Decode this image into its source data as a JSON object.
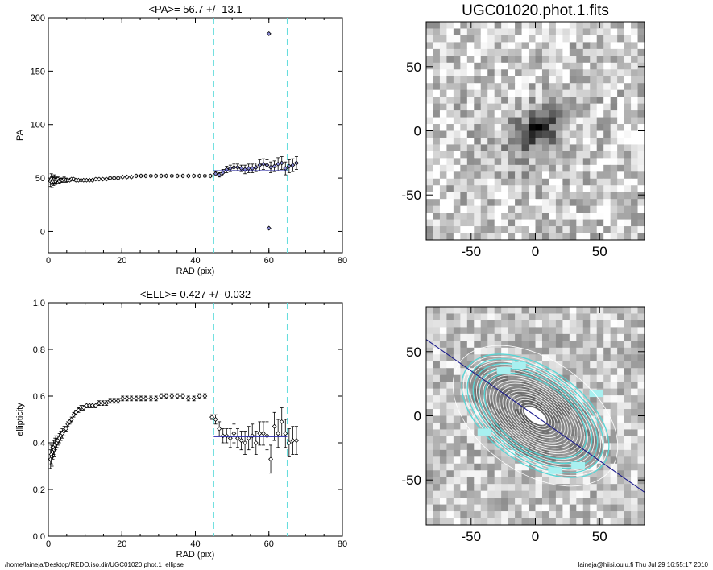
{
  "chart_data": [
    {
      "type": "scatter",
      "title": "<PA>=  56.7 +/-  13.1",
      "xlabel": "RAD (pix)",
      "ylabel": "PA",
      "xlim": [
        0,
        80
      ],
      "ylim": [
        -20,
        200
      ],
      "xticks": [
        0,
        20,
        40,
        60,
        80
      ],
      "yticks": [
        0,
        50,
        100,
        150,
        200
      ],
      "grid": false,
      "vlines": [
        45,
        65
      ],
      "vline_color": "#66dddd",
      "mean_line": {
        "x": [
          45,
          65
        ],
        "y": 56.7,
        "color": "#2b2bb0"
      },
      "series": [
        {
          "marker": "diamond",
          "facecolor": "#ffffff",
          "x": [
            0.6,
            0.8,
            1.0,
            1.2,
            1.4,
            1.6,
            1.8,
            2.0,
            2.3,
            2.6,
            3.0,
            3.4,
            3.8,
            4.3,
            4.8,
            5.3,
            5.8,
            6.3,
            6.9,
            7.5,
            8.2,
            8.9,
            9.6,
            10.4,
            11.2,
            12.0,
            12.9,
            13.8,
            14.8,
            15.8,
            16.8,
            17.9,
            19.0,
            20.2,
            21.4,
            22.6,
            23.9,
            25.2,
            26.5,
            27.9,
            29.3,
            30.7,
            32.1,
            33.6,
            35.1,
            36.6,
            38.1,
            39.6,
            41.1,
            42.6,
            44.1
          ],
          "y": [
            47,
            49,
            46,
            48,
            47,
            49,
            48,
            47,
            48,
            49,
            47,
            48,
            48,
            49,
            48,
            48,
            48,
            49,
            49,
            48,
            48,
            48,
            48,
            48,
            48,
            48,
            49,
            49,
            49,
            49,
            50,
            50,
            50,
            51,
            51,
            51,
            52,
            52,
            52,
            52,
            52,
            52,
            52,
            52,
            52,
            52,
            52,
            52,
            52,
            52,
            52
          ],
          "yerr": [
            5,
            5,
            5,
            4,
            4,
            4,
            3,
            3,
            3,
            2,
            2,
            2,
            2,
            2,
            2,
            1,
            1,
            1,
            1,
            1,
            1,
            1,
            1,
            1,
            1,
            1,
            1,
            1,
            1,
            1,
            1,
            1,
            1,
            1,
            1,
            1,
            1,
            1,
            1,
            1,
            1,
            1,
            1,
            1,
            1,
            1,
            1,
            1,
            1,
            1,
            1
          ]
        },
        {
          "marker": "diamond",
          "facecolor": "#8a8ad8",
          "x": [
            45.5,
            46.5,
            47.5,
            48.5,
            49.5,
            50.5,
            51.5,
            52.5,
            53.5,
            54.5,
            55.5,
            56.5,
            57.5,
            58.5,
            59.5,
            60.5,
            61.5,
            62.5,
            63.5,
            64.5,
            65.5,
            66.5,
            67.5
          ],
          "y": [
            54,
            53,
            55,
            58,
            59,
            60,
            60,
            59,
            58,
            59,
            59,
            60,
            62,
            63,
            62,
            60,
            61,
            63,
            64,
            59,
            61,
            62,
            64
          ],
          "yerr": [
            2,
            2,
            3,
            3,
            3,
            3,
            3,
            3,
            4,
            4,
            4,
            4,
            5,
            5,
            5,
            5,
            5,
            6,
            6,
            6,
            6,
            6,
            6
          ]
        },
        {
          "marker": "diamond",
          "facecolor": "#8a8ad8",
          "x": [
            60,
            60
          ],
          "y": [
            185,
            3
          ],
          "yerr": [
            0,
            0
          ]
        }
      ]
    },
    {
      "type": "scatter",
      "title": "<ELL>= 0.427 +/-  0.032",
      "xlabel": "RAD (pix)",
      "ylabel": "ellipticity",
      "xlim": [
        0,
        80
      ],
      "ylim": [
        0.0,
        1.0
      ],
      "xticks": [
        0,
        20,
        40,
        60,
        80
      ],
      "yticks": [
        0.0,
        0.2,
        0.4,
        0.6,
        0.8,
        1.0
      ],
      "grid": false,
      "vlines": [
        45,
        65
      ],
      "vline_color": "#66dddd",
      "mean_line": {
        "x": [
          45,
          65
        ],
        "y": 0.427,
        "color": "#2b2bb0"
      },
      "series": [
        {
          "marker": "diamond",
          "facecolor": "#ffffff",
          "x": [
            0.6,
            0.8,
            1.0,
            1.2,
            1.4,
            1.6,
            1.8,
            2.0,
            2.3,
            2.6,
            3.0,
            3.4,
            3.8,
            4.3,
            4.8,
            5.3,
            5.8,
            6.3,
            6.9,
            7.5,
            8.2,
            8.9,
            9.6,
            10.4,
            11.2,
            12.0,
            12.9,
            13.8,
            14.8,
            15.8,
            16.8,
            17.9,
            19.0,
            20.2,
            21.4,
            22.6,
            23.9,
            25.2,
            26.5,
            27.9,
            29.3,
            30.7,
            32.1,
            33.6,
            35.1,
            36.6,
            38.1,
            39.6,
            41.1,
            42.6
          ],
          "y": [
            0.33,
            0.35,
            0.34,
            0.36,
            0.38,
            0.37,
            0.39,
            0.4,
            0.4,
            0.41,
            0.42,
            0.43,
            0.44,
            0.45,
            0.46,
            0.48,
            0.49,
            0.5,
            0.52,
            0.53,
            0.54,
            0.55,
            0.55,
            0.56,
            0.56,
            0.56,
            0.56,
            0.57,
            0.57,
            0.57,
            0.58,
            0.58,
            0.58,
            0.59,
            0.59,
            0.59,
            0.59,
            0.59,
            0.59,
            0.59,
            0.59,
            0.6,
            0.6,
            0.6,
            0.6,
            0.6,
            0.59,
            0.59,
            0.6,
            0.6
          ],
          "yerr": [
            0.04,
            0.04,
            0.04,
            0.03,
            0.03,
            0.03,
            0.03,
            0.03,
            0.02,
            0.02,
            0.02,
            0.02,
            0.02,
            0.02,
            0.01,
            0.01,
            0.01,
            0.01,
            0.01,
            0.01,
            0.01,
            0.01,
            0.01,
            0.01,
            0.01,
            0.01,
            0.01,
            0.01,
            0.01,
            0.01,
            0.01,
            0.01,
            0.01,
            0.01,
            0.01,
            0.01,
            0.01,
            0.01,
            0.01,
            0.01,
            0.01,
            0.01,
            0.01,
            0.01,
            0.01,
            0.01,
            0.01,
            0.01,
            0.01,
            0.01
          ]
        },
        {
          "marker": "diamond",
          "facecolor": "#ffffff",
          "x": [
            44.5,
            45.5,
            46.5,
            47.5,
            48.5,
            49.5,
            50.5,
            51.5,
            52.5,
            53.5,
            54.5,
            55.5,
            56.5,
            57.5,
            58.5,
            59.5,
            60.5,
            61.5,
            62.5,
            63.5,
            64.5,
            65.5,
            66.5,
            67.5
          ],
          "y": [
            0.51,
            0.5,
            0.46,
            0.43,
            0.43,
            0.42,
            0.44,
            0.42,
            0.41,
            0.4,
            0.42,
            0.43,
            0.4,
            0.44,
            0.44,
            0.43,
            0.33,
            0.47,
            0.44,
            0.49,
            0.44,
            0.4,
            0.41,
            0.41
          ],
          "yerr": [
            0.01,
            0.02,
            0.03,
            0.03,
            0.03,
            0.04,
            0.04,
            0.04,
            0.04,
            0.05,
            0.05,
            0.05,
            0.05,
            0.05,
            0.05,
            0.06,
            0.06,
            0.06,
            0.06,
            0.06,
            0.06,
            0.06,
            0.06,
            0.06
          ]
        }
      ]
    }
  ],
  "images": [
    {
      "title": "UGC01020.phot.1.fits",
      "xlim": [
        -85,
        85
      ],
      "ylim": [
        -85,
        85
      ],
      "xticks": [
        -50,
        0,
        50
      ],
      "yticks": [
        -50,
        0,
        50
      ],
      "overlay": false
    },
    {
      "title": "",
      "xlim": [
        -85,
        85
      ],
      "ylim": [
        -85,
        85
      ],
      "xticks": [
        -50,
        0,
        50
      ],
      "yticks": [
        -50,
        0,
        50
      ],
      "overlay": true,
      "major_axis_color": "#1a1a8c",
      "ellipse_color": "#ffffff",
      "highlight_color": "#55d6d6"
    }
  ],
  "footer": {
    "path": "/home/laineja/Desktop/REDO.iso.dir/UGC01020.phot.1_ellipse",
    "stamp": "laineja@hiisi.oulu.fi  Thu Jul 29 16:55:17 2010"
  }
}
